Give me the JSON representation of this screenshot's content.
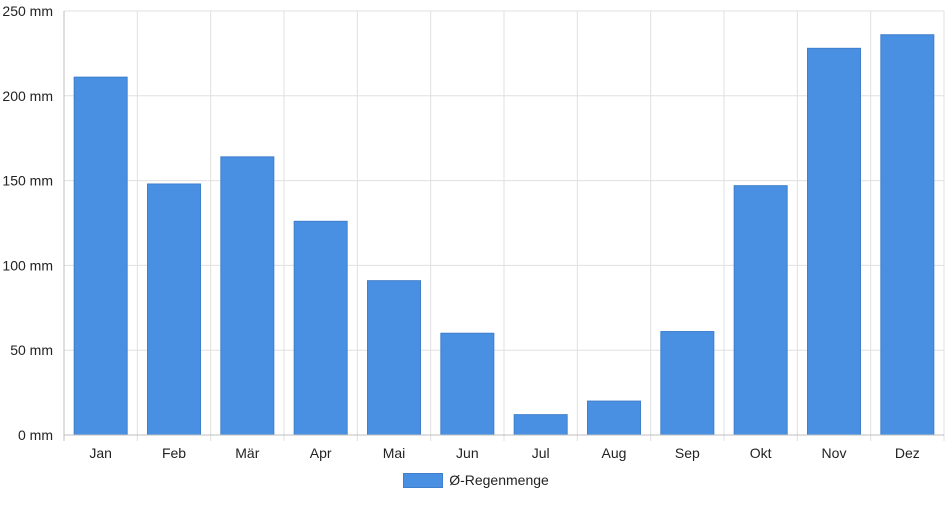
{
  "chart_data": {
    "type": "bar",
    "categories": [
      "Jan",
      "Feb",
      "Mär",
      "Apr",
      "Mai",
      "Jun",
      "Jul",
      "Aug",
      "Sep",
      "Okt",
      "Nov",
      "Dez"
    ],
    "series": [
      {
        "name": "Ø-Regenmenge",
        "values": [
          211,
          148,
          164,
          126,
          91,
          60,
          12,
          20,
          61,
          147,
          228,
          236
        ]
      }
    ],
    "yticks": [
      "0 mm",
      "50 mm",
      "100 mm",
      "150 mm",
      "200 mm",
      "250 mm"
    ],
    "ylim": [
      0,
      250
    ],
    "grid": true,
    "legend": "bottom",
    "colors": {
      "bar": "#4a90e2",
      "bar_border": "#3f7fcc",
      "grid": "#e0e0e0",
      "axis": "#bfbfbf"
    }
  }
}
